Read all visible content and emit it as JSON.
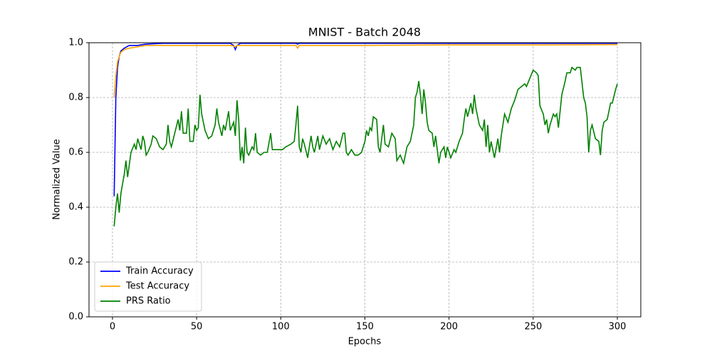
{
  "chart_data": {
    "type": "line",
    "title": "MNIST - Batch 2048",
    "xlabel": "Epochs",
    "ylabel": "Normalized Value",
    "xlim": [
      -13.95,
      313.95
    ],
    "xticks": [
      0,
      50,
      100,
      150,
      200,
      250,
      300
    ],
    "ylim": [
      0,
      1
    ],
    "yticks": [
      {
        "value": 0,
        "label": "0.0"
      },
      0.2,
      0.4,
      0.6,
      0.8,
      {
        "value": 1,
        "label": "1.0"
      }
    ],
    "grid": true,
    "legend": "lower left",
    "series": [
      {
        "name": "Train Accuracy",
        "color": "#0000ff",
        "x": [
          1,
          2,
          3,
          4,
          5,
          7,
          10,
          15,
          20,
          30,
          50,
          70,
          72,
          73,
          74,
          76,
          100,
          109,
          110,
          111,
          150,
          200,
          250,
          300
        ],
        "values": [
          0.44,
          0.8,
          0.91,
          0.95,
          0.97,
          0.98,
          0.99,
          0.99,
          0.995,
          0.998,
          0.998,
          0.998,
          0.99,
          0.975,
          0.99,
          0.998,
          0.998,
          0.998,
          0.995,
          0.998,
          0.998,
          0.998,
          0.998,
          0.998
        ]
      },
      {
        "name": "Test Accuracy",
        "color": "#ffa500",
        "x": [
          1,
          2,
          3,
          4,
          5,
          7,
          10,
          15,
          20,
          30,
          50,
          70,
          72,
          73,
          74,
          100,
          109,
          110,
          111,
          150,
          200,
          250,
          300
        ],
        "values": [
          0.8,
          0.88,
          0.93,
          0.95,
          0.965,
          0.975,
          0.98,
          0.985,
          0.99,
          0.99,
          0.99,
          0.99,
          0.988,
          0.985,
          0.99,
          0.99,
          0.99,
          0.98,
          0.99,
          0.99,
          0.992,
          0.992,
          0.993
        ]
      },
      {
        "name": "PRS Ratio",
        "color": "#008000",
        "x": [
          1,
          2,
          3,
          4,
          5,
          7,
          8,
          9,
          11,
          13,
          14,
          15,
          17,
          18,
          19,
          20,
          21,
          23,
          24,
          26,
          28,
          30,
          32,
          33,
          34,
          35,
          37,
          39,
          40,
          41,
          42,
          44,
          45,
          46,
          48,
          49,
          50,
          51,
          52,
          53,
          54,
          55,
          57,
          59,
          61,
          62,
          63,
          65,
          66,
          67,
          69,
          70,
          72,
          73,
          74,
          75,
          76,
          77,
          78,
          79,
          80,
          81,
          83,
          84,
          85,
          86,
          88,
          90,
          92,
          94,
          95,
          97,
          99,
          101,
          103,
          106,
          108,
          109,
          110,
          111,
          112,
          113,
          114,
          116,
          117,
          118,
          119,
          120,
          122,
          123,
          125,
          127,
          129,
          131,
          133,
          135,
          137,
          138,
          139,
          140,
          142,
          144,
          146,
          148,
          150,
          151,
          152,
          153,
          154,
          155,
          157,
          158,
          159,
          161,
          162,
          164,
          166,
          168,
          169,
          171,
          173,
          175,
          177,
          179,
          180,
          181,
          182,
          183,
          184,
          185,
          186,
          187,
          188,
          190,
          191,
          192,
          194,
          195,
          197,
          198,
          199,
          201,
          203,
          204,
          206,
          208,
          209,
          210,
          211,
          213,
          214,
          215,
          216,
          218,
          220,
          221,
          222,
          223,
          224,
          225,
          227,
          229,
          230,
          231,
          232,
          233,
          235,
          237,
          239,
          241,
          243,
          245,
          246,
          248,
          250,
          252,
          253,
          254,
          256,
          257,
          258,
          259,
          260,
          262,
          263,
          264,
          265,
          267,
          269,
          270,
          272,
          273,
          275,
          276,
          278,
          280,
          281,
          282,
          283,
          284,
          285,
          287,
          289,
          290,
          291,
          292,
          294,
          296,
          297,
          299,
          300
        ],
        "values": [
          0.33,
          0.4,
          0.45,
          0.38,
          0.45,
          0.52,
          0.57,
          0.51,
          0.6,
          0.63,
          0.61,
          0.65,
          0.61,
          0.66,
          0.64,
          0.59,
          0.6,
          0.63,
          0.66,
          0.65,
          0.62,
          0.61,
          0.63,
          0.7,
          0.64,
          0.62,
          0.67,
          0.72,
          0.68,
          0.75,
          0.67,
          0.67,
          0.76,
          0.64,
          0.64,
          0.7,
          0.68,
          0.69,
          0.81,
          0.74,
          0.71,
          0.68,
          0.65,
          0.66,
          0.7,
          0.76,
          0.71,
          0.66,
          0.7,
          0.68,
          0.75,
          0.68,
          0.71,
          0.66,
          0.79,
          0.72,
          0.57,
          0.62,
          0.56,
          0.69,
          0.6,
          0.59,
          0.62,
          0.61,
          0.67,
          0.6,
          0.59,
          0.6,
          0.6,
          0.67,
          0.61,
          0.61,
          0.61,
          0.61,
          0.62,
          0.63,
          0.64,
          0.7,
          0.77,
          0.62,
          0.6,
          0.65,
          0.63,
          0.58,
          0.62,
          0.66,
          0.62,
          0.6,
          0.66,
          0.61,
          0.66,
          0.63,
          0.65,
          0.61,
          0.64,
          0.62,
          0.67,
          0.67,
          0.6,
          0.59,
          0.61,
          0.59,
          0.59,
          0.6,
          0.64,
          0.68,
          0.66,
          0.69,
          0.68,
          0.73,
          0.72,
          0.62,
          0.6,
          0.7,
          0.63,
          0.62,
          0.67,
          0.65,
          0.57,
          0.59,
          0.56,
          0.62,
          0.64,
          0.7,
          0.8,
          0.82,
          0.86,
          0.81,
          0.74,
          0.83,
          0.78,
          0.71,
          0.68,
          0.67,
          0.62,
          0.66,
          0.56,
          0.6,
          0.62,
          0.58,
          0.62,
          0.58,
          0.61,
          0.6,
          0.64,
          0.67,
          0.72,
          0.76,
          0.73,
          0.78,
          0.74,
          0.81,
          0.76,
          0.7,
          0.68,
          0.72,
          0.62,
          0.7,
          0.6,
          0.64,
          0.58,
          0.65,
          0.6,
          0.66,
          0.7,
          0.74,
          0.71,
          0.76,
          0.79,
          0.83,
          0.84,
          0.85,
          0.84,
          0.87,
          0.9,
          0.89,
          0.88,
          0.77,
          0.74,
          0.7,
          0.72,
          0.67,
          0.7,
          0.74,
          0.73,
          0.74,
          0.69,
          0.81,
          0.86,
          0.89,
          0.89,
          0.91,
          0.9,
          0.91,
          0.91,
          0.8,
          0.78,
          0.73,
          0.6,
          0.68,
          0.7,
          0.65,
          0.64,
          0.59,
          0.68,
          0.71,
          0.72,
          0.78,
          0.78,
          0.83,
          0.85
        ]
      }
    ]
  }
}
